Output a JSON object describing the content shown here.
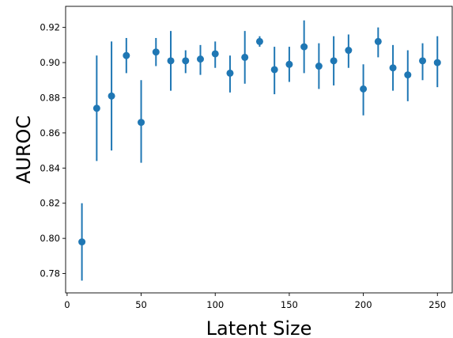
{
  "chart_data": {
    "type": "scatter",
    "title": "",
    "xlabel": "Latent Size",
    "ylabel": "AUROC",
    "xlim": [
      -1,
      260
    ],
    "ylim": [
      0.769,
      0.932
    ],
    "xticks": [
      0,
      50,
      100,
      150,
      200,
      250
    ],
    "xtick_labels": [
      "0",
      "50",
      "100",
      "150",
      "200",
      "250"
    ],
    "yticks": [
      0.78,
      0.8,
      0.82,
      0.84,
      0.86,
      0.88,
      0.9,
      0.92
    ],
    "ytick_labels": [
      "0.78",
      "0.80",
      "0.82",
      "0.84",
      "0.86",
      "0.88",
      "0.90",
      "0.92"
    ],
    "grid": false,
    "color": "#1f77b4",
    "series": [
      {
        "x": [
          10,
          20,
          30,
          40,
          50,
          60,
          70,
          80,
          90,
          100,
          110,
          120,
          130,
          140,
          150,
          160,
          170,
          180,
          190,
          200,
          210,
          220,
          230,
          240,
          250
        ],
        "y": [
          0.798,
          0.874,
          0.881,
          0.904,
          0.866,
          0.906,
          0.901,
          0.901,
          0.902,
          0.905,
          0.894,
          0.903,
          0.912,
          0.896,
          0.899,
          0.909,
          0.898,
          0.901,
          0.907,
          0.885,
          0.912,
          0.897,
          0.893,
          0.901,
          0.9
        ],
        "ylow": [
          0.776,
          0.844,
          0.85,
          0.894,
          0.843,
          0.898,
          0.884,
          0.894,
          0.893,
          0.897,
          0.883,
          0.888,
          0.909,
          0.882,
          0.889,
          0.894,
          0.885,
          0.887,
          0.897,
          0.87,
          0.903,
          0.884,
          0.878,
          0.89,
          0.886
        ],
        "yhigh": [
          0.82,
          0.904,
          0.912,
          0.914,
          0.89,
          0.914,
          0.918,
          0.907,
          0.91,
          0.912,
          0.904,
          0.918,
          0.915,
          0.909,
          0.909,
          0.924,
          0.911,
          0.915,
          0.916,
          0.899,
          0.92,
          0.91,
          0.907,
          0.911,
          0.915
        ]
      }
    ]
  }
}
